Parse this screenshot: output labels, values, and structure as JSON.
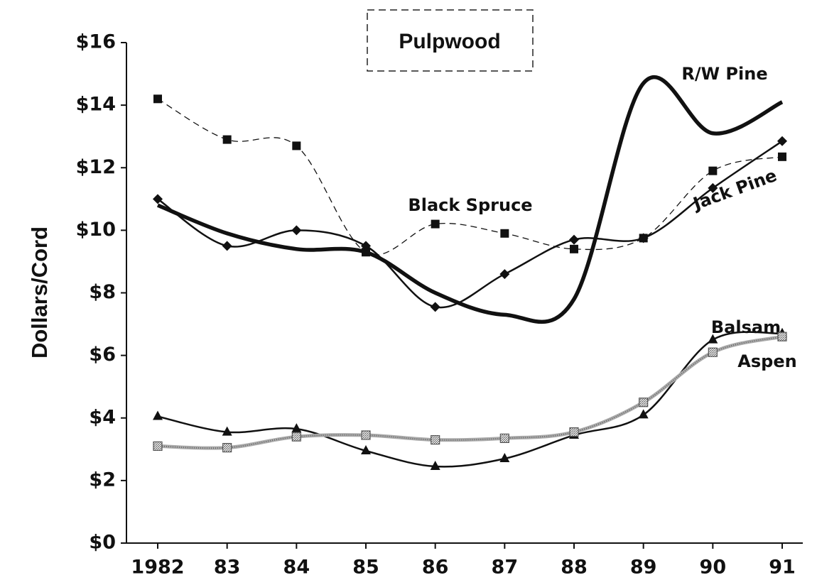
{
  "chart_data": {
    "type": "line",
    "title": "Pulpwood",
    "ylabel": "Dollars/Cord",
    "categories": [
      "1982",
      "83",
      "84",
      "85",
      "86",
      "87",
      "88",
      "89",
      "90",
      "91"
    ],
    "ylim": [
      0,
      16
    ],
    "yticks": [
      {
        "value": 0,
        "label": "$0"
      },
      {
        "value": 2,
        "label": "$2"
      },
      {
        "value": 4,
        "label": "$4"
      },
      {
        "value": 6,
        "label": "$6"
      },
      {
        "value": 8,
        "label": "$8"
      },
      {
        "value": 10,
        "label": "$10"
      },
      {
        "value": 12,
        "label": "$12"
      },
      {
        "value": 14,
        "label": "$14"
      },
      {
        "value": 16,
        "label": "$16"
      }
    ],
    "series": [
      {
        "name": "R/W Pine",
        "color": "#111111",
        "line_style": "bold",
        "marker": "none",
        "values": [
          10.8,
          9.9,
          9.4,
          9.3,
          8.0,
          7.3,
          7.8,
          14.7,
          13.1,
          14.1
        ]
      },
      {
        "name": "Black Spruce",
        "color": "#111111",
        "line_style": "dashed",
        "marker": "square",
        "values": [
          14.2,
          12.9,
          12.7,
          9.3,
          10.2,
          9.9,
          9.4,
          9.75,
          11.9,
          12.35
        ]
      },
      {
        "name": "Jack Pine",
        "color": "#111111",
        "line_style": "solid",
        "marker": "diamond",
        "values": [
          11.0,
          9.5,
          10.0,
          9.5,
          7.55,
          8.6,
          9.7,
          9.75,
          11.35,
          12.85
        ]
      },
      {
        "name": "Balsam",
        "color": "#111111",
        "line_style": "solid",
        "marker": "triangle",
        "values": [
          4.05,
          3.55,
          3.65,
          2.95,
          2.45,
          2.7,
          3.45,
          4.1,
          6.5,
          6.7
        ]
      },
      {
        "name": "Aspen",
        "color": "#999999",
        "line_style": "dotted",
        "marker": "hatched-square",
        "values": [
          3.1,
          3.05,
          3.4,
          3.45,
          3.3,
          3.35,
          3.55,
          4.5,
          6.1,
          6.6
        ]
      }
    ]
  }
}
